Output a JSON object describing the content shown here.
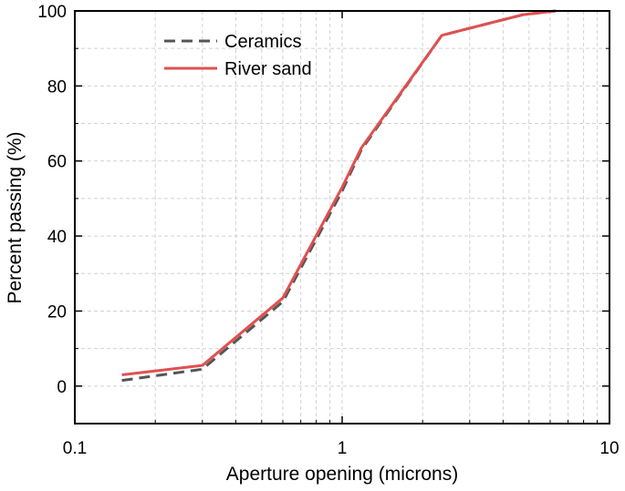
{
  "chart_data": {
    "type": "line",
    "title": "",
    "xlabel": "Aperture opening (microns)",
    "ylabel": "Percent passing (%)",
    "xscale": "log",
    "xlim": [
      0.1,
      10
    ],
    "ylim": [
      -10,
      100
    ],
    "xticks": [
      0.1,
      1,
      10
    ],
    "xtick_labels": [
      "0.1",
      "1",
      "10"
    ],
    "yticks": [
      0,
      20,
      40,
      60,
      80,
      100
    ],
    "ytick_labels": [
      "0",
      "20",
      "40",
      "60",
      "80",
      "100"
    ],
    "grid": "dashed, major and minor",
    "legend_position": "top-left",
    "series": [
      {
        "name": "Ceramics",
        "color": "#555555",
        "style": "dashed",
        "x": [
          0.15,
          0.3,
          0.6,
          1.0,
          1.18,
          2.36,
          4.75,
          6.3
        ],
        "y": [
          1.5,
          4.5,
          22.5,
          52.0,
          63.0,
          93.5,
          99.0,
          100.0
        ]
      },
      {
        "name": "River sand",
        "color": "#e05050",
        "style": "solid",
        "x": [
          0.15,
          0.3,
          0.6,
          1.0,
          1.18,
          2.36,
          4.75,
          6.3
        ],
        "y": [
          3.0,
          5.5,
          23.5,
          53.0,
          63.5,
          93.5,
          99.0,
          100.0
        ]
      }
    ]
  }
}
